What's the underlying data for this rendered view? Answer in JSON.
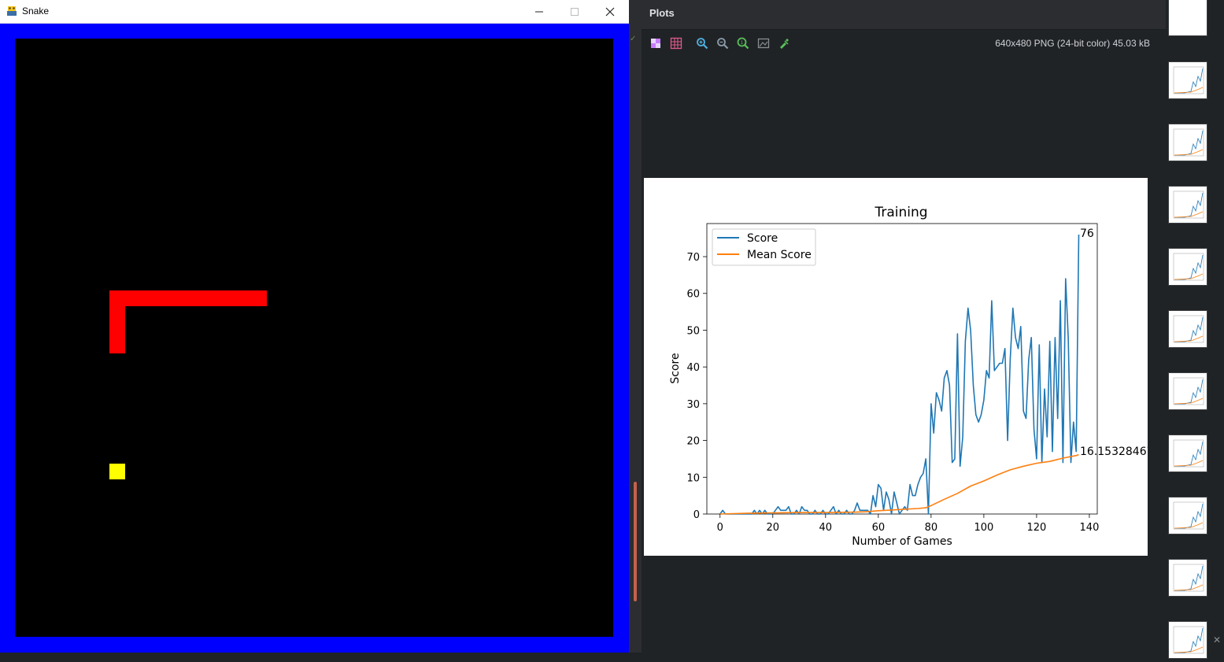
{
  "snake_window": {
    "title": "Snake",
    "icon": "python-icon",
    "controls": {
      "minimize": "minimize-icon",
      "maximize": "maximize-icon",
      "close": "close-icon"
    },
    "colors": {
      "border": "#0000ff",
      "background": "#000000",
      "snake": "#ff0000",
      "food": "#ffff00"
    }
  },
  "plots": {
    "title": "Plots",
    "image_info": "640x480 PNG (24-bit color) 45.03 kB",
    "toolbar": [
      "checkerboard-icon",
      "grid-icon",
      "zoom-in-icon",
      "zoom-out-icon",
      "actual-size-icon",
      "fit-image-icon",
      "color-picker-icon"
    ],
    "thumbnail_count": 10
  },
  "chart_data": {
    "type": "line",
    "title": "Training",
    "xlabel": "Number of Games",
    "ylabel": "Score",
    "xlim": [
      -5,
      143
    ],
    "ylim": [
      0,
      79
    ],
    "xticks": [
      "0",
      "20",
      "40",
      "60",
      "80",
      "100",
      "120",
      "140"
    ],
    "yticks": [
      "0",
      "10",
      "20",
      "30",
      "40",
      "50",
      "60",
      "70"
    ],
    "legend_position": "top-left",
    "annotations": {
      "last_score": "76",
      "last_mean": "16.15328467"
    },
    "series": [
      {
        "name": "Score",
        "color": "#1f77b4",
        "x": [
          0,
          1,
          2,
          3,
          4,
          5,
          6,
          7,
          8,
          9,
          10,
          11,
          12,
          13,
          14,
          15,
          16,
          17,
          18,
          19,
          20,
          21,
          22,
          23,
          24,
          25,
          26,
          27,
          28,
          29,
          30,
          31,
          32,
          33,
          34,
          35,
          36,
          37,
          38,
          39,
          40,
          41,
          42,
          43,
          44,
          45,
          46,
          47,
          48,
          49,
          50,
          51,
          52,
          53,
          54,
          55,
          56,
          57,
          58,
          59,
          60,
          61,
          62,
          63,
          64,
          65,
          66,
          67,
          68,
          69,
          70,
          71,
          72,
          73,
          74,
          75,
          76,
          77,
          78,
          79,
          80,
          81,
          82,
          83,
          84,
          85,
          86,
          87,
          88,
          89,
          90,
          91,
          92,
          93,
          94,
          95,
          96,
          97,
          98,
          99,
          100,
          101,
          102,
          103,
          104,
          105,
          106,
          107,
          108,
          109,
          110,
          111,
          112,
          113,
          114,
          115,
          116,
          117,
          118,
          119,
          120,
          121,
          122,
          123,
          124,
          125,
          126,
          127,
          128,
          129,
          130,
          131,
          132,
          133,
          134,
          135,
          136
        ],
        "values": [
          0,
          1,
          0,
          0,
          0,
          0,
          0,
          0,
          0,
          0,
          0,
          0,
          0,
          1,
          0,
          1,
          0,
          1,
          0,
          0,
          0,
          1,
          2,
          1,
          1,
          1,
          2,
          0,
          0,
          1,
          0,
          2,
          1,
          1,
          0,
          0,
          1,
          0,
          0,
          1,
          0,
          0,
          1,
          2,
          0,
          1,
          0,
          0,
          1,
          0,
          0,
          1,
          3,
          1,
          1,
          1,
          1,
          0,
          5,
          2,
          8,
          7,
          1,
          6,
          4,
          0,
          6,
          3,
          0,
          1,
          2,
          1,
          8,
          5,
          5,
          8,
          10,
          11,
          15,
          0,
          30,
          22,
          33,
          31,
          28,
          37,
          39,
          35,
          14,
          15,
          49,
          13,
          21,
          47,
          56,
          50,
          35,
          27,
          25,
          27,
          31,
          39,
          37,
          58,
          39,
          40,
          41,
          41,
          45,
          20,
          42,
          56,
          48,
          45,
          51,
          28,
          26,
          42,
          48,
          23,
          15,
          46,
          14,
          34,
          21,
          47,
          17,
          48,
          26,
          58,
          14,
          64,
          48,
          14,
          25,
          17,
          76
        ]
      },
      {
        "name": "Mean Score",
        "color": "#ff7f0e",
        "x": [
          0,
          10,
          20,
          30,
          40,
          50,
          55,
          60,
          65,
          70,
          75,
          78,
          80,
          85,
          90,
          95,
          100,
          105,
          110,
          115,
          120,
          125,
          130,
          135,
          136
        ],
        "values": [
          0,
          0.2,
          0.3,
          0.4,
          0.4,
          0.5,
          0.6,
          0.9,
          1.1,
          1.3,
          1.5,
          1.7,
          2.3,
          4.0,
          5.6,
          7.6,
          9.0,
          10.6,
          12.0,
          13.0,
          13.8,
          14.3,
          15.2,
          15.9,
          16.15
        ]
      }
    ]
  }
}
